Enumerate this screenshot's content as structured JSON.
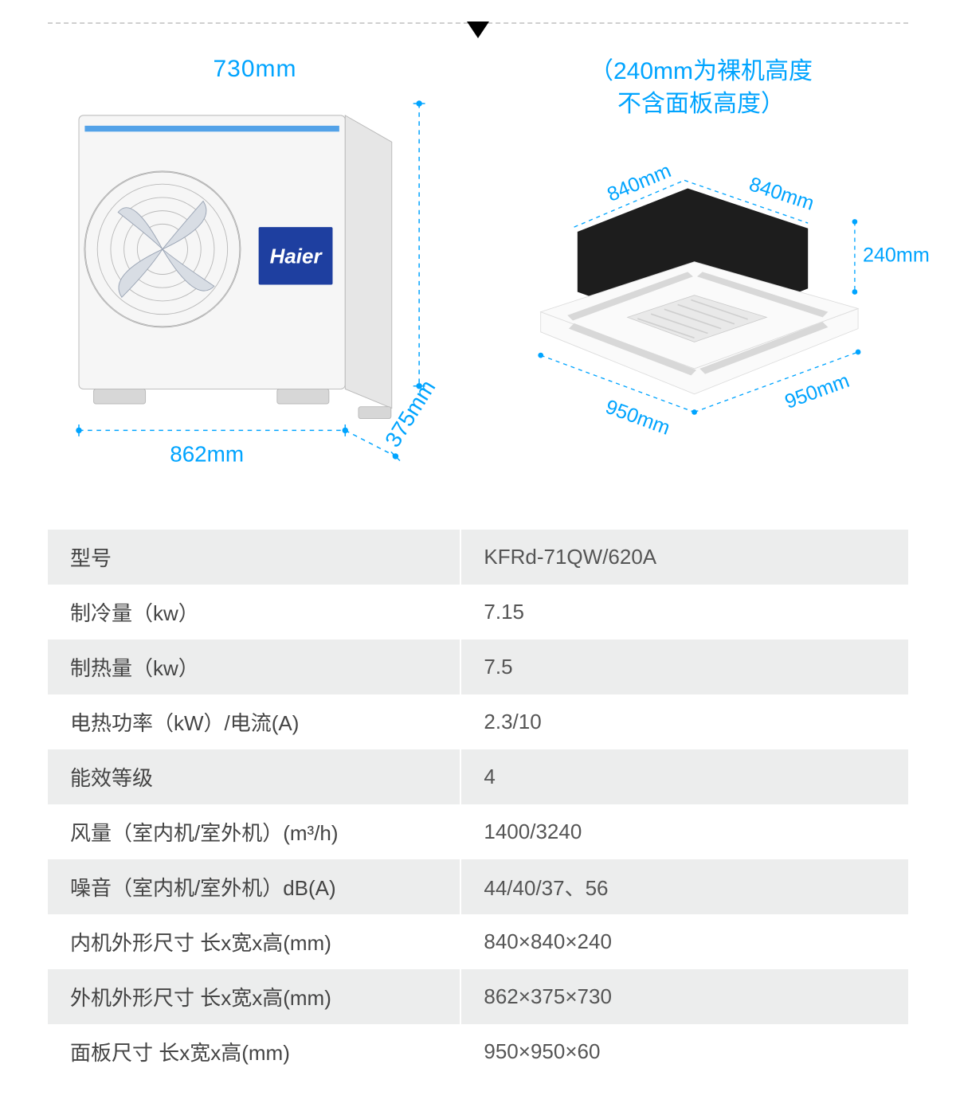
{
  "accent_color": "#00a4ff",
  "brand": {
    "logo_text": "Haier",
    "logo_bg": "#1e3fa0"
  },
  "outdoor_unit": {
    "width_label": "862mm",
    "height_label": "730mm",
    "depth_label": "375mm"
  },
  "indoor_unit": {
    "note_line1": "（240mm为裸机高度",
    "note_line2": "不含面板高度）",
    "body_w_label": "840mm",
    "body_d_label": "840mm",
    "body_h_label": "240mm",
    "panel_w_label": "950mm",
    "panel_d_label": "950mm"
  },
  "spec_table": {
    "rows": [
      {
        "label": "型号",
        "value": "KFRd-71QW/620A"
      },
      {
        "label": "制冷量（kw）",
        "value": "7.15"
      },
      {
        "label": "制热量（kw）",
        "value": "7.5"
      },
      {
        "label": "电热功率（kW）/电流(A)",
        "value": "2.3/10"
      },
      {
        "label": "能效等级",
        "value": "4"
      },
      {
        "label": "风量（室内机/室外机）(m³/h)",
        "value": "1400/3240"
      },
      {
        "label": "噪音（室内机/室外机）dB(A)",
        "value": "44/40/37、56"
      },
      {
        "label": "内机外形尺寸 长x宽x高(mm)",
        "value": "840×840×240"
      },
      {
        "label": "外机外形尺寸 长x宽x高(mm)",
        "value": "862×375×730"
      },
      {
        "label": "面板尺寸 长x宽x高(mm)",
        "value": "950×950×60"
      }
    ]
  }
}
